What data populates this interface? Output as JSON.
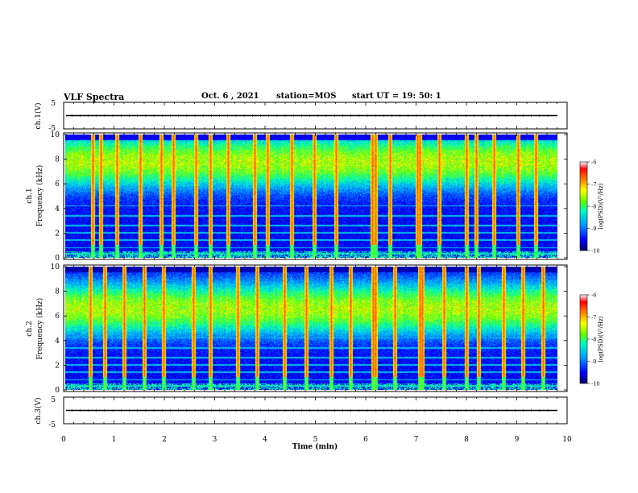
{
  "header": {
    "title": "VLF Spectra",
    "date": "Oct. 6 , 2021",
    "station": "station=MOS",
    "start": "start UT = 19: 50: 1"
  },
  "colors": {
    "colormap": [
      "#000066",
      "#0000ff",
      "#00a0ff",
      "#00ffc0",
      "#60ff00",
      "#ffff00",
      "#ff8000",
      "#ff0000",
      "#ffffff"
    ],
    "background": "#ffffff",
    "trace": "#000000"
  },
  "chart_data": [
    {
      "type": "line",
      "panel": "waveform-ch1",
      "ylabel": "ch.1(V)",
      "ylim": [
        -5,
        5
      ],
      "yticks": [
        "5",
        "-5"
      ],
      "x": [
        0,
        10
      ],
      "values": [
        0,
        0
      ]
    },
    {
      "type": "heatmap",
      "panel": "spectrogram-ch1",
      "ylabel": "ch.1\nFrequency (kHz)",
      "ylim": [
        0,
        10
      ],
      "yticks": [
        "0",
        "2",
        "4",
        "6",
        "8",
        "10"
      ],
      "colorbar": {
        "label": "log(PSD)(V²/Hz)",
        "range": [
          -10,
          -6
        ],
        "ticks": [
          "-6",
          "-7",
          "-8",
          "-9",
          "-10"
        ]
      },
      "band_center_khz": 7.8,
      "spike_times_min": [
        0.55,
        0.72,
        1.05,
        1.52,
        1.95,
        2.2,
        2.65,
        2.95,
        3.3,
        3.85,
        4.1,
        4.6,
        5.05,
        5.5,
        6.23,
        6.3,
        6.6,
        7.15,
        7.2,
        7.6,
        8.15,
        8.35,
        8.7,
        9.2,
        9.55
      ]
    },
    {
      "type": "heatmap",
      "panel": "spectrogram-ch2",
      "ylabel": "ch.2\nFrequency (kHz)",
      "ylim": [
        0,
        10
      ],
      "yticks": [
        "0",
        "2",
        "4",
        "6",
        "8",
        "10"
      ],
      "colorbar": {
        "label": "log(PSD)(V²/Hz)",
        "range": [
          -10,
          -6
        ],
        "ticks": [
          "-6",
          "-7",
          "-8",
          "-9",
          "-10"
        ]
      },
      "band_center_khz": 6.6,
      "spike_times_min": [
        0.5,
        0.8,
        1.2,
        1.6,
        2.0,
        2.6,
        2.95,
        3.5,
        3.9,
        4.45,
        4.9,
        5.4,
        5.8,
        6.25,
        6.3,
        6.7,
        7.2,
        7.25,
        7.7,
        8.15,
        8.4,
        8.9,
        9.3,
        9.7
      ]
    },
    {
      "type": "line",
      "panel": "waveform-ch3",
      "xlabel": "Time (min)",
      "ylabel": "ch.3(V)",
      "ylim": [
        -5,
        5
      ],
      "yticks": [
        "5",
        "-5"
      ],
      "xlim": [
        0,
        10
      ],
      "xticks": [
        "0",
        "1",
        "2",
        "3",
        "4",
        "5",
        "6",
        "7",
        "8",
        "9",
        "10"
      ],
      "x": [
        0,
        10
      ],
      "values": [
        0,
        0
      ]
    }
  ]
}
